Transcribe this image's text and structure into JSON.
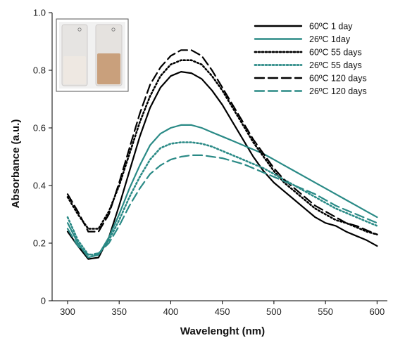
{
  "chart_data": {
    "type": "line",
    "title": "",
    "xlabel": "Wavelenght (nm)",
    "ylabel": "Absorbance (a.u.)",
    "xlim": [
      285,
      610
    ],
    "ylim": [
      0,
      1.0
    ],
    "xticks": [
      "300",
      "350",
      "400",
      "450",
      "500",
      "550",
      "600"
    ],
    "yticks": [
      "0",
      "0.2",
      "0.4",
      "0.6",
      "0.8",
      "1.0"
    ],
    "grid": false,
    "legend_position": "top-right",
    "inset": "photo of two cuvettes",
    "colors": {
      "black": "#000000",
      "teal": "#2a8a86"
    },
    "x": [
      300,
      310,
      320,
      330,
      340,
      350,
      360,
      370,
      380,
      390,
      400,
      410,
      420,
      430,
      440,
      450,
      460,
      470,
      480,
      490,
      500,
      510,
      520,
      530,
      540,
      550,
      560,
      570,
      580,
      590,
      600
    ],
    "series": [
      {
        "name": "60ºC 1 day",
        "color": "#000000",
        "style": "solid",
        "values": [
          0.24,
          0.19,
          0.145,
          0.15,
          0.22,
          0.33,
          0.45,
          0.57,
          0.67,
          0.74,
          0.78,
          0.795,
          0.79,
          0.77,
          0.73,
          0.68,
          0.62,
          0.56,
          0.5,
          0.45,
          0.41,
          0.38,
          0.35,
          0.32,
          0.29,
          0.27,
          0.26,
          0.24,
          0.225,
          0.21,
          0.19
        ]
      },
      {
        "name": "26ºC 1day",
        "color": "#2a8a86",
        "style": "solid",
        "values": [
          0.27,
          0.2,
          0.15,
          0.16,
          0.22,
          0.3,
          0.39,
          0.47,
          0.54,
          0.58,
          0.6,
          0.61,
          0.61,
          0.6,
          0.585,
          0.57,
          0.555,
          0.54,
          0.525,
          0.51,
          0.49,
          0.47,
          0.45,
          0.43,
          0.41,
          0.39,
          0.37,
          0.35,
          0.33,
          0.31,
          0.29
        ]
      },
      {
        "name": "60ºC 55 days",
        "color": "#000000",
        "style": "dotted",
        "values": [
          0.36,
          0.3,
          0.25,
          0.25,
          0.31,
          0.4,
          0.51,
          0.62,
          0.71,
          0.78,
          0.82,
          0.835,
          0.835,
          0.82,
          0.78,
          0.73,
          0.67,
          0.61,
          0.55,
          0.5,
          0.45,
          0.41,
          0.38,
          0.35,
          0.32,
          0.3,
          0.28,
          0.27,
          0.255,
          0.24,
          0.23
        ]
      },
      {
        "name": "26ºC 55 days",
        "color": "#2a8a86",
        "style": "dotted",
        "values": [
          0.29,
          0.21,
          0.16,
          0.16,
          0.21,
          0.28,
          0.36,
          0.43,
          0.49,
          0.53,
          0.545,
          0.55,
          0.55,
          0.545,
          0.535,
          0.52,
          0.505,
          0.49,
          0.475,
          0.46,
          0.44,
          0.42,
          0.4,
          0.38,
          0.36,
          0.34,
          0.32,
          0.305,
          0.29,
          0.275,
          0.26
        ]
      },
      {
        "name": "60ºC 120 days",
        "color": "#000000",
        "style": "long-dash",
        "values": [
          0.37,
          0.31,
          0.24,
          0.24,
          0.3,
          0.41,
          0.53,
          0.65,
          0.75,
          0.81,
          0.85,
          0.87,
          0.87,
          0.85,
          0.8,
          0.74,
          0.68,
          0.62,
          0.56,
          0.51,
          0.46,
          0.42,
          0.39,
          0.36,
          0.33,
          0.31,
          0.29,
          0.27,
          0.26,
          0.245,
          0.23
        ]
      },
      {
        "name": "26ºC 120 days",
        "color": "#2a8a86",
        "style": "long-dash",
        "values": [
          0.25,
          0.19,
          0.16,
          0.165,
          0.2,
          0.26,
          0.33,
          0.39,
          0.44,
          0.47,
          0.49,
          0.5,
          0.505,
          0.505,
          0.5,
          0.495,
          0.485,
          0.475,
          0.46,
          0.445,
          0.43,
          0.415,
          0.4,
          0.385,
          0.37,
          0.35,
          0.33,
          0.315,
          0.3,
          0.285,
          0.27
        ]
      }
    ]
  }
}
